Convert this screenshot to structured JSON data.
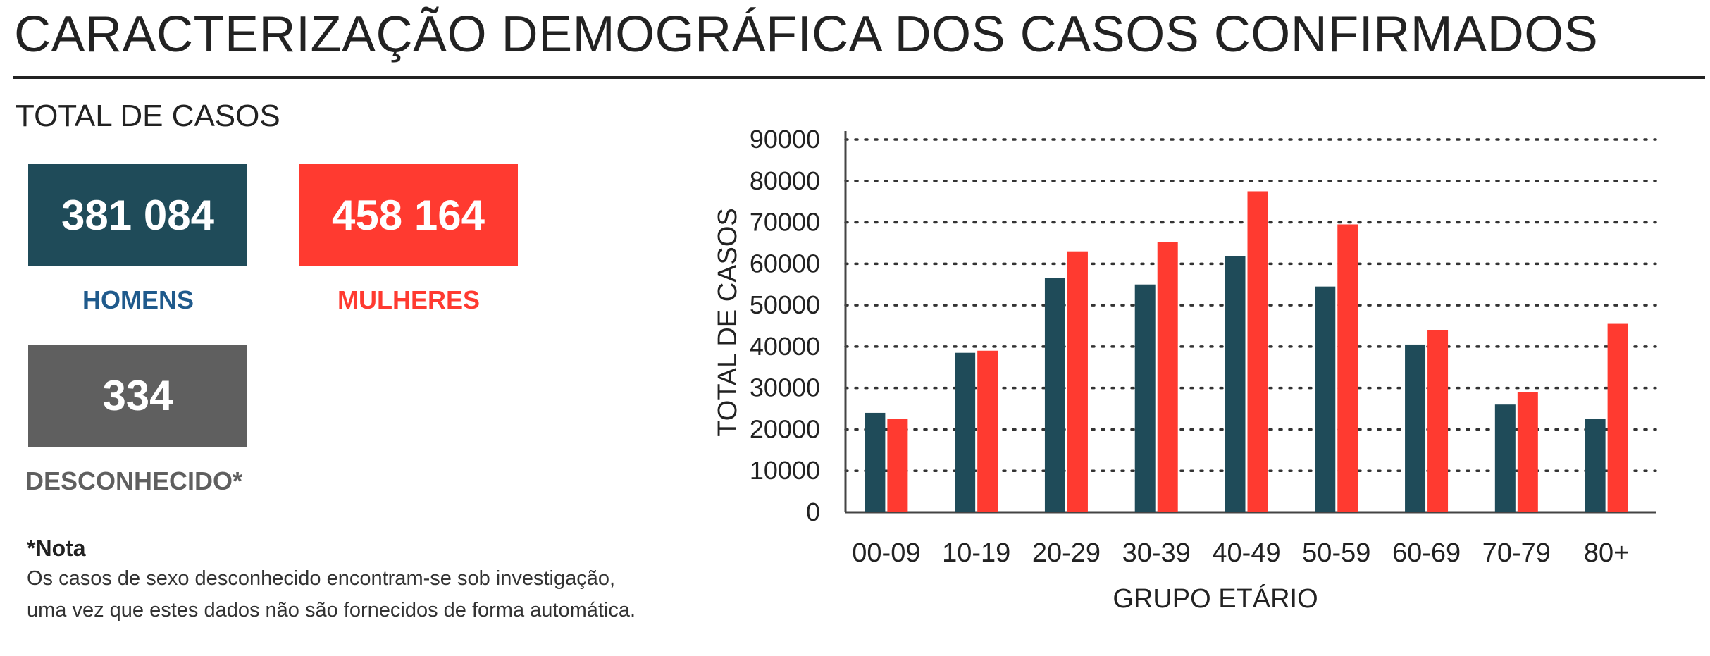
{
  "title": "CARACTERIZAÇÃO DEMOGRÁFICA DOS CASOS CONFIRMADOS",
  "summary": {
    "heading": "TOTAL DE CASOS",
    "men": {
      "value": "381 084",
      "label": "HOMENS",
      "color": "#1f4b59",
      "label_color": "#1f5a8c"
    },
    "women": {
      "value": "458 164",
      "label": "MULHERES",
      "color": "#ff3a30",
      "label_color": "#ff3a30"
    },
    "unknown": {
      "value": "334",
      "label": "DESCONHECIDO*",
      "color": "#5f5f5f",
      "label_color": "#5f5f5f"
    }
  },
  "note": {
    "title": "*Nota",
    "lines": [
      "Os casos de sexo desconhecido encontram-se sob investigação,",
      "uma vez que estes dados não são fornecidos de forma automática."
    ]
  },
  "chart_data": {
    "type": "bar",
    "categories": [
      "00-09",
      "10-19",
      "20-29",
      "30-39",
      "40-49",
      "50-59",
      "60-69",
      "70-79",
      "80+"
    ],
    "series": [
      {
        "color": "#1f4b59",
        "values": [
          24000,
          38500,
          56500,
          55000,
          61800,
          54500,
          40500,
          26000,
          22500
        ]
      },
      {
        "color": "#ff3a30",
        "values": [
          22500,
          39000,
          63000,
          65300,
          77500,
          69500,
          44000,
          29000,
          45500
        ]
      }
    ],
    "xlabel": "GRUPO ETÁRIO",
    "ylabel": "TOTAL DE CASOS",
    "ylim": [
      0,
      90000
    ],
    "yticks": [
      "0",
      "10000",
      "20000",
      "30000",
      "40000",
      "50000",
      "60000",
      "70000",
      "80000",
      "90000"
    ],
    "grid": true,
    "grid_style": "dotted"
  }
}
